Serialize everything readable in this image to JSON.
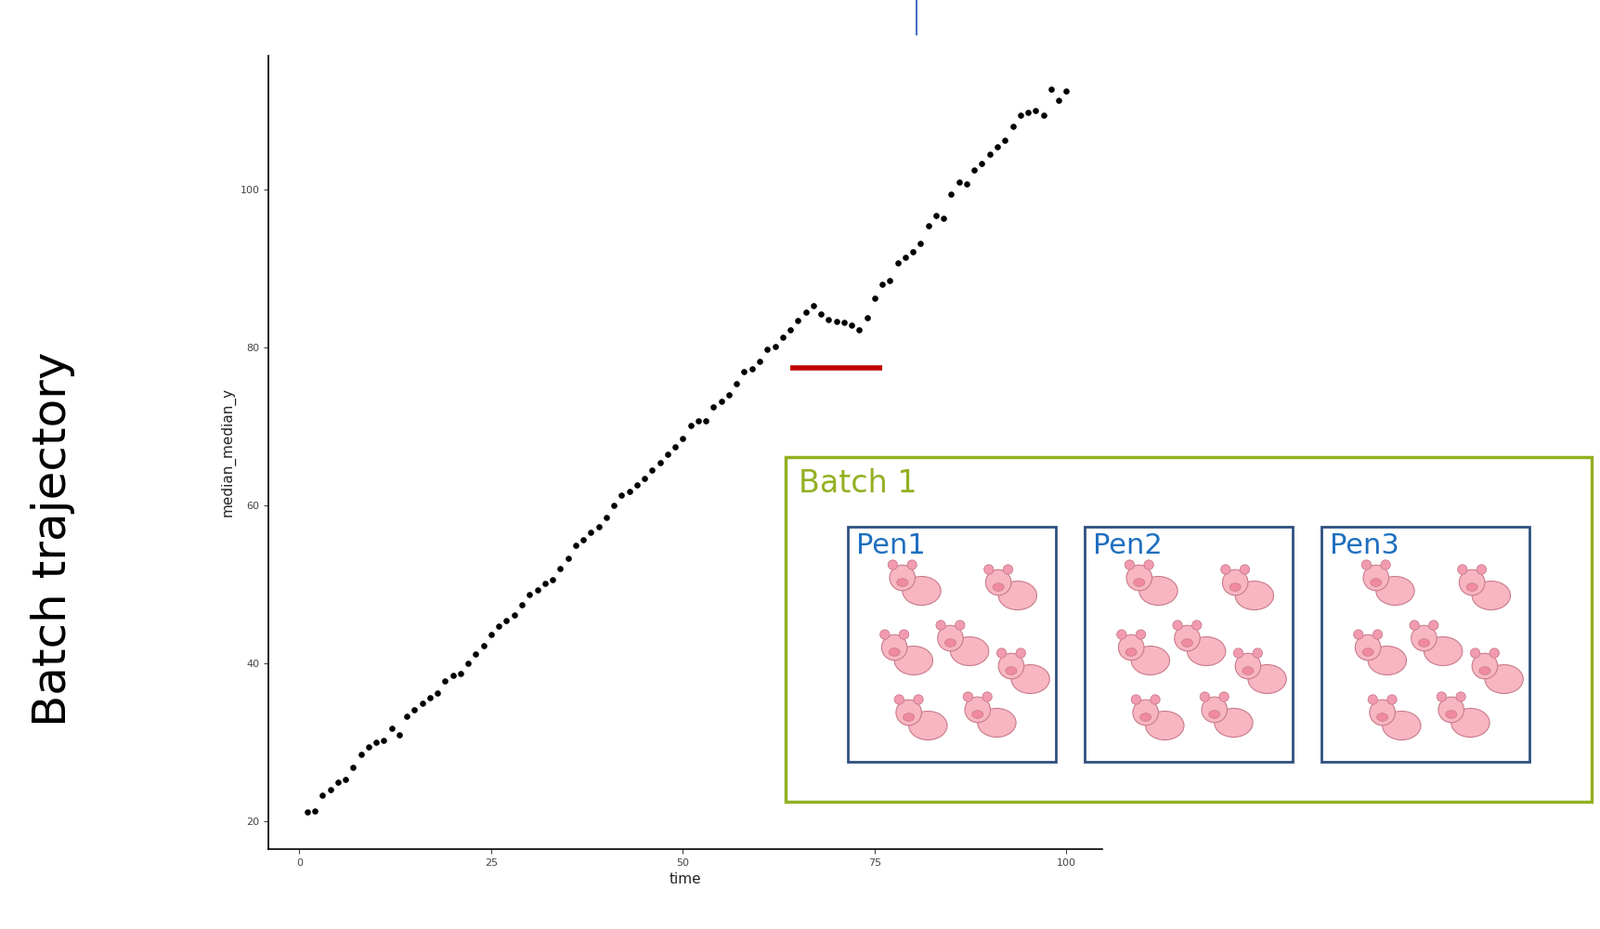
{
  "chart_data": {
    "type": "scatter",
    "x_label": "time",
    "y_label": "median_median_y",
    "color": "#000000",
    "marker": "o",
    "x": [
      1,
      2,
      3,
      4,
      5,
      6,
      7,
      8,
      9,
      10,
      11,
      12,
      13,
      14,
      15,
      16,
      17,
      18,
      19,
      20,
      21,
      22,
      23,
      24,
      25,
      26,
      27,
      28,
      29,
      30,
      31,
      32,
      33,
      34,
      35,
      36,
      37,
      38,
      39,
      40,
      41,
      42,
      43,
      44,
      45,
      46,
      47,
      48,
      49,
      50,
      51,
      52,
      53,
      54,
      55,
      56,
      57,
      58,
      59,
      60,
      61,
      62,
      63,
      64,
      65,
      66,
      67,
      68,
      69,
      70,
      71,
      72,
      73,
      74,
      75,
      76,
      77,
      78,
      79,
      80,
      81,
      82,
      83,
      84,
      85,
      86,
      87,
      88,
      89,
      90,
      91,
      92,
      93,
      94,
      95,
      96,
      97,
      98,
      99,
      100
    ],
    "values": [
      21.2,
      21.3,
      23.3,
      24.0,
      25.0,
      25.3,
      26.8,
      28.5,
      29.5,
      30.0,
      30.3,
      31.8,
      31.0,
      33.3,
      34.2,
      35.0,
      35.7,
      36.3,
      37.8,
      38.5,
      38.7,
      40.0,
      41.2,
      42.3,
      43.7,
      44.8,
      45.5,
      46.2,
      47.5,
      48.7,
      49.3,
      50.2,
      50.6,
      52.0,
      53.3,
      55.0,
      55.7,
      56.6,
      57.3,
      58.5,
      60.0,
      61.3,
      61.8,
      62.6,
      63.5,
      64.5,
      65.5,
      66.5,
      67.5,
      68.5,
      70.2,
      70.8,
      70.7,
      72.5,
      73.2,
      74.0,
      75.5,
      77.0,
      77.3,
      78.3,
      79.8,
      80.2,
      81.3,
      82.3,
      83.5,
      84.5,
      85.3,
      84.3,
      83.6,
      83.3,
      83.2,
      82.9,
      82.3,
      83.8,
      86.3,
      88.0,
      88.5,
      90.7,
      91.5,
      92.2,
      93.2,
      95.5,
      96.8,
      96.4,
      99.5,
      101.0,
      100.8,
      102.5,
      103.3,
      104.5,
      105.5,
      106.3,
      108.0,
      109.5,
      109.8,
      110.0,
      109.5,
      112.8,
      111.3,
      112.5
    ],
    "xlim": [
      -4,
      104.7
    ],
    "ylim": [
      16.5,
      117
    ],
    "xticks": [
      0,
      25,
      50,
      75,
      100
    ],
    "yticks": [
      20,
      40,
      60,
      80,
      100
    ],
    "grid": false,
    "highlight": {
      "x": [
        64,
        76
      ],
      "y": 77.5,
      "color": "#c00000"
    }
  },
  "slide": {
    "side_label": "Batch trajectory",
    "inset": {
      "title": "Batch 1",
      "pens": [
        "Pen1",
        "Pen2",
        "Pen3"
      ]
    }
  }
}
